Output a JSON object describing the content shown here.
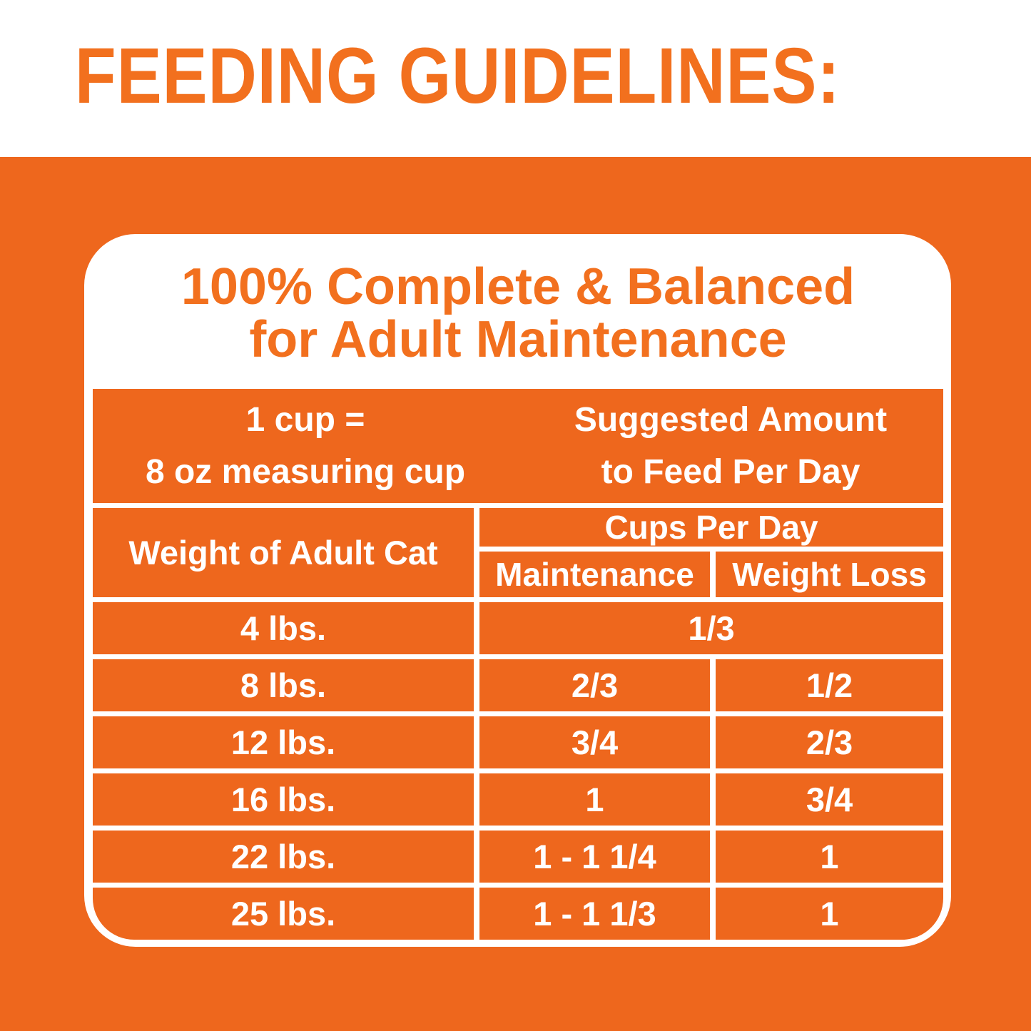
{
  "colors": {
    "orange_bg": "#EE671D",
    "orange_text": "#F2701E",
    "white": "#FFFFFF"
  },
  "header": {
    "title": "FEEDING GUIDELINES:"
  },
  "card": {
    "heading_line1": "100% Complete & Balanced",
    "heading_line2": "for Adult Maintenance",
    "banner": {
      "left_line1": "1 cup =",
      "left_line2": "8 oz measuring cup",
      "right_line1": "Suggested Amount",
      "right_line2": "to Feed Per Day"
    },
    "table": {
      "col1_header": "Weight of Adult Cat",
      "group_header": "Cups Per Day",
      "col2_header": "Maintenance",
      "col3_header": "Weight Loss",
      "rows": [
        {
          "weight": "4 lbs.",
          "maintenance": "1/3",
          "weight_loss": "",
          "span": true
        },
        {
          "weight": "8 lbs.",
          "maintenance": "2/3",
          "weight_loss": "1/2",
          "span": false
        },
        {
          "weight": "12 lbs.",
          "maintenance": "3/4",
          "weight_loss": "2/3",
          "span": false
        },
        {
          "weight": "16 lbs.",
          "maintenance": "1",
          "weight_loss": "3/4",
          "span": false
        },
        {
          "weight": "22 lbs.",
          "maintenance": "1 - 1 1/4",
          "weight_loss": "1",
          "span": false
        },
        {
          "weight": "25 lbs.",
          "maintenance": "1 - 1 1/3",
          "weight_loss": "1",
          "span": false
        }
      ]
    }
  }
}
